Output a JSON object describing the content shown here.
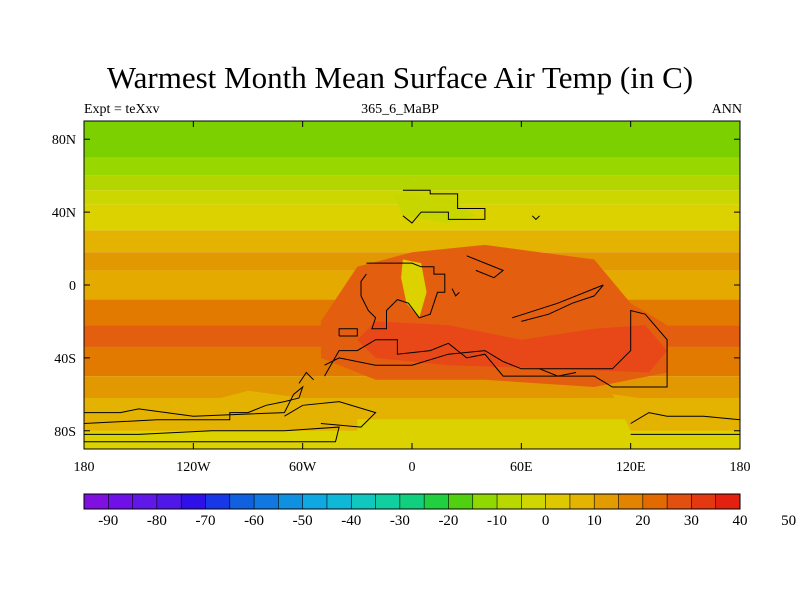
{
  "title": "Warmest Month Mean Surface Air Temp (in C)",
  "subtitle_left": "Expt = teXxv",
  "subtitle_center": "365_6_MaBP",
  "subtitle_right": "ANN",
  "map": {
    "projection": "cylindrical-equidistant",
    "lon_range": [
      -180,
      180
    ],
    "lat_range": [
      -90,
      90
    ],
    "lon_ticks": [
      {
        "value": -180,
        "label": "180"
      },
      {
        "value": -120,
        "label": "120W"
      },
      {
        "value": -60,
        "label": "60W"
      },
      {
        "value": 0,
        "label": "0"
      },
      {
        "value": 60,
        "label": "60E"
      },
      {
        "value": 120,
        "label": "120E"
      },
      {
        "value": 180,
        "label": "180"
      }
    ],
    "lat_ticks": [
      {
        "value": 80,
        "label": "80N"
      },
      {
        "value": 40,
        "label": "40N"
      },
      {
        "value": 0,
        "label": "0"
      },
      {
        "value": -40,
        "label": "40S"
      },
      {
        "value": -80,
        "label": "80S"
      }
    ],
    "zonal_bands": [
      {
        "lat": [
          70,
          90
        ],
        "color": "#7cd000"
      },
      {
        "lat": [
          60,
          70
        ],
        "color": "#98d800"
      },
      {
        "lat": [
          52,
          60
        ],
        "color": "#b4d600"
      },
      {
        "lat": [
          44,
          52
        ],
        "color": "#ccd600"
      },
      {
        "lat": [
          30,
          44
        ],
        "color": "#dcd200"
      },
      {
        "lat": [
          18,
          30
        ],
        "color": "#e4b200"
      },
      {
        "lat": [
          8,
          18
        ],
        "color": "#e29800"
      },
      {
        "lat": [
          -8,
          8
        ],
        "color": "#e4aa00"
      },
      {
        "lat": [
          -22,
          -8
        ],
        "color": "#e27a00"
      },
      {
        "lat": [
          -34,
          -22
        ],
        "color": "#e45e10"
      },
      {
        "lat": [
          -50,
          -34
        ],
        "color": "#e27a00"
      },
      {
        "lat": [
          -62,
          -50
        ],
        "color": "#e29800"
      },
      {
        "lat": [
          -74,
          -62
        ],
        "color": "#e4b200"
      },
      {
        "lat": [
          -90,
          -74
        ],
        "color": "#dcd200"
      }
    ],
    "hot_regions": [
      {
        "color": "#e45e10",
        "points": [
          [
            -30,
            10
          ],
          [
            0,
            18
          ],
          [
            40,
            22
          ],
          [
            70,
            18
          ],
          [
            100,
            14
          ],
          [
            120,
            -10
          ],
          [
            140,
            -22
          ],
          [
            140,
            -48
          ],
          [
            100,
            -56
          ],
          [
            40,
            -52
          ],
          [
            -20,
            -52
          ],
          [
            -50,
            -40
          ],
          [
            -50,
            -20
          ]
        ]
      },
      {
        "color": "#e84818",
        "points": [
          [
            -20,
            -20
          ],
          [
            20,
            -22
          ],
          [
            60,
            -30
          ],
          [
            100,
            -24
          ],
          [
            128,
            -22
          ],
          [
            140,
            -36
          ],
          [
            130,
            -48
          ],
          [
            80,
            -46
          ],
          [
            20,
            -44
          ],
          [
            -20,
            -40
          ],
          [
            -30,
            -30
          ]
        ]
      }
    ],
    "cool_regions": [
      {
        "color": "#c8d600",
        "points": [
          [
            -10,
            50
          ],
          [
            20,
            48
          ],
          [
            35,
            38
          ],
          [
            20,
            34
          ],
          [
            -5,
            38
          ]
        ]
      },
      {
        "color": "#dcd200",
        "points": [
          [
            -5,
            14
          ],
          [
            5,
            12
          ],
          [
            8,
            -4
          ],
          [
            4,
            -18
          ],
          [
            -3,
            -10
          ],
          [
            -6,
            4
          ]
        ]
      },
      {
        "color": "#e4b200",
        "points": [
          [
            -180,
            -66
          ],
          [
            -120,
            -66
          ],
          [
            -90,
            -58
          ],
          [
            -60,
            -62
          ],
          [
            -30,
            -70
          ],
          [
            -30,
            -80
          ],
          [
            -180,
            -80
          ]
        ]
      },
      {
        "color": "#e4b200",
        "points": [
          [
            110,
            -60
          ],
          [
            140,
            -64
          ],
          [
            180,
            -70
          ],
          [
            180,
            -80
          ],
          [
            120,
            -80
          ]
        ]
      }
    ],
    "coastlines": [
      [
        [
          -5,
          52
        ],
        [
          10,
          52
        ],
        [
          10,
          50
        ],
        [
          25,
          50
        ],
        [
          25,
          42
        ],
        [
          40,
          42
        ],
        [
          40,
          36
        ],
        [
          20,
          36
        ],
        [
          20,
          40
        ],
        [
          5,
          40
        ],
        [
          0,
          34
        ],
        [
          -5,
          38
        ]
      ],
      [
        [
          -25,
          12
        ],
        [
          0,
          12
        ],
        [
          5,
          10
        ],
        [
          12,
          10
        ],
        [
          12,
          6
        ],
        [
          18,
          6
        ],
        [
          18,
          -4
        ],
        [
          14,
          -4
        ],
        [
          10,
          -16
        ],
        [
          4,
          -18
        ],
        [
          -2,
          -10
        ],
        [
          -8,
          -8
        ],
        [
          -14,
          -14
        ],
        [
          -14,
          -24
        ],
        [
          -22,
          -24
        ],
        [
          -20,
          -18
        ],
        [
          -24,
          -14
        ],
        [
          -28,
          -6
        ],
        [
          -28,
          2
        ],
        [
          -25,
          6
        ]
      ],
      [
        [
          -40,
          -28
        ],
        [
          -30,
          -28
        ],
        [
          -30,
          -24
        ],
        [
          -40,
          -24
        ],
        [
          -40,
          -28
        ]
      ],
      [
        [
          -48,
          -50
        ],
        [
          -40,
          -36
        ],
        [
          -30,
          -36
        ],
        [
          -20,
          -30
        ],
        [
          -8,
          -30
        ],
        [
          -8,
          -38
        ],
        [
          10,
          -36
        ],
        [
          20,
          -32
        ],
        [
          30,
          -40
        ],
        [
          40,
          -38
        ],
        [
          50,
          -50
        ],
        [
          100,
          -50
        ],
        [
          110,
          -56
        ],
        [
          128,
          -56
        ],
        [
          140,
          -56
        ],
        [
          140,
          -30
        ],
        [
          128,
          -16
        ],
        [
          120,
          -14
        ],
        [
          120,
          -36
        ],
        [
          110,
          -46
        ],
        [
          60,
          -46
        ],
        [
          50,
          -42
        ],
        [
          40,
          -36
        ],
        [
          20,
          -38
        ],
        [
          0,
          -44
        ],
        [
          -20,
          -44
        ],
        [
          -40,
          -40
        ],
        [
          -48,
          -44
        ]
      ],
      [
        [
          55,
          -18
        ],
        [
          80,
          -10
        ],
        [
          100,
          -2
        ],
        [
          105,
          0
        ],
        [
          100,
          -6
        ],
        [
          88,
          -10
        ],
        [
          75,
          -16
        ],
        [
          60,
          -20
        ]
      ],
      [
        [
          30,
          16
        ],
        [
          40,
          12
        ],
        [
          50,
          8
        ],
        [
          45,
          4
        ],
        [
          35,
          8
        ]
      ],
      [
        [
          22,
          -2
        ],
        [
          24,
          -6
        ],
        [
          26,
          -4
        ]
      ],
      [
        [
          -180,
          -70
        ],
        [
          -160,
          -70
        ],
        [
          -150,
          -68
        ],
        [
          -120,
          -72
        ],
        [
          -70,
          -70
        ],
        [
          -65,
          -60
        ],
        [
          -60,
          -56
        ],
        [
          -62,
          -62
        ],
        [
          -70,
          -64
        ],
        [
          -80,
          -66
        ],
        [
          -90,
          -70
        ],
        [
          -100,
          -70
        ],
        [
          -100,
          -74
        ],
        [
          -140,
          -74
        ],
        [
          -180,
          -76
        ]
      ],
      [
        [
          -180,
          -82
        ],
        [
          -150,
          -82
        ],
        [
          -110,
          -80
        ],
        [
          -70,
          -80
        ],
        [
          -40,
          -78
        ],
        [
          -42,
          -86
        ],
        [
          -90,
          -86
        ],
        [
          -180,
          -86
        ]
      ],
      [
        [
          -70,
          -72
        ],
        [
          -60,
          -66
        ],
        [
          -40,
          -64
        ],
        [
          -20,
          -70
        ],
        [
          -28,
          -78
        ],
        [
          -50,
          -76
        ]
      ],
      [
        [
          120,
          -76
        ],
        [
          130,
          -70
        ],
        [
          140,
          -72
        ],
        [
          160,
          -72
        ],
        [
          180,
          -74
        ],
        [
          180,
          -82
        ],
        [
          120,
          -82
        ]
      ],
      [
        [
          -62,
          -54
        ],
        [
          -58,
          -48
        ],
        [
          -54,
          -52
        ]
      ],
      [
        [
          70,
          -46
        ],
        [
          80,
          -50
        ],
        [
          90,
          -48
        ]
      ],
      [
        [
          66,
          38
        ],
        [
          68,
          36
        ],
        [
          70,
          38
        ]
      ]
    ]
  },
  "colorbar": {
    "colors": [
      "#8010e0",
      "#7010e8",
      "#6018e8",
      "#5018e8",
      "#3010e8",
      "#1838e8",
      "#1060e0",
      "#1078e0",
      "#1090e0",
      "#10a8e0",
      "#10b8d8",
      "#10c8c0",
      "#10d0a0",
      "#10d080",
      "#20d040",
      "#50d010",
      "#90d800",
      "#b8d800",
      "#d0d600",
      "#e0c800",
      "#e4b400",
      "#e29c00",
      "#e28400",
      "#e26a00",
      "#e25010",
      "#e43810",
      "#e42010"
    ],
    "labels": [
      "-90",
      "-80",
      "-70",
      "-60",
      "-50",
      "-40",
      "-30",
      "-20",
      "-10",
      "0",
      "10",
      "20",
      "30",
      "40",
      "50"
    ]
  }
}
